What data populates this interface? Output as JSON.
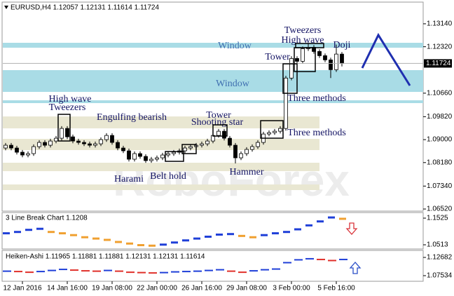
{
  "chart_data": [
    {
      "type": "candlestick",
      "title": "EURUSD,H4 1.12057 1.12131 1.11614 1.11724",
      "x": [
        null,
        null,
        null,
        "12 Jan 2016",
        null,
        null,
        null,
        null,
        null,
        null,
        null,
        "14 Jan 16:00",
        null,
        null,
        null,
        null,
        null,
        null,
        null,
        "19 Jan 08:00",
        null,
        null,
        null,
        null,
        null,
        null,
        null,
        "22 Jan 00:00",
        null,
        null,
        null,
        null,
        null,
        null,
        null,
        "26 Jan 16:00",
        null,
        null,
        null,
        null,
        null,
        null,
        null,
        "29 Jan 08:00",
        null,
        null,
        null,
        null,
        null,
        null,
        null,
        "3 Feb 00:00",
        null,
        null,
        null,
        null,
        null,
        null,
        null,
        "5 Feb 16:00",
        null
      ],
      "open": [
        1.087,
        1.088,
        1.087,
        1.0855,
        1.0845,
        1.085,
        1.0875,
        1.089,
        1.088,
        1.0895,
        1.0905,
        1.094,
        1.091,
        1.0895,
        1.089,
        1.0885,
        1.088,
        1.0885,
        1.09,
        1.0915,
        1.089,
        1.087,
        1.086,
        1.083,
        1.085,
        1.084,
        1.0825,
        1.083,
        1.0835,
        1.0845,
        1.085,
        1.0855,
        1.086,
        1.087,
        1.0875,
        1.088,
        1.0885,
        1.0895,
        1.0915,
        1.093,
        1.0905,
        1.088,
        1.0835,
        1.085,
        1.0865,
        1.0875,
        1.089,
        1.092,
        1.0925,
        1.093,
        1.094,
        1.112,
        1.119,
        1.118,
        1.1225,
        1.123,
        1.1215,
        1.12,
        1.1185,
        1.115,
        1.12057
      ],
      "high": [
        1.0888,
        1.0888,
        1.0878,
        1.0863,
        1.0858,
        1.0883,
        1.0898,
        1.0898,
        1.0903,
        1.0913,
        1.0948,
        1.0948,
        1.0918,
        1.0903,
        1.0898,
        1.0893,
        1.0893,
        1.0908,
        1.0923,
        1.0923,
        1.0898,
        1.0878,
        1.0868,
        1.0858,
        1.0858,
        1.0848,
        1.0838,
        1.0843,
        1.0853,
        1.0858,
        1.0863,
        1.0868,
        1.0878,
        1.0883,
        1.0888,
        1.0893,
        1.0903,
        1.0923,
        1.0938,
        1.0938,
        1.0913,
        1.0888,
        1.0858,
        1.0873,
        1.0883,
        1.0898,
        1.0928,
        1.0933,
        1.0938,
        1.0948,
        1.1128,
        1.1198,
        1.1198,
        1.1233,
        1.1245,
        1.1238,
        1.1223,
        1.1208,
        1.1193,
        1.124,
        1.12131
      ],
      "low": [
        1.0862,
        1.0862,
        1.0847,
        1.0837,
        1.0837,
        1.0842,
        1.0867,
        1.0872,
        1.0872,
        1.0887,
        1.0897,
        1.0902,
        1.0887,
        1.0882,
        1.0877,
        1.0872,
        1.0872,
        1.0877,
        1.0892,
        1.0882,
        1.0862,
        1.0852,
        1.0822,
        1.0822,
        1.0832,
        1.0817,
        1.0817,
        1.0822,
        1.0827,
        1.0837,
        1.0842,
        1.0847,
        1.0852,
        1.0862,
        1.0867,
        1.0872,
        1.0877,
        1.0887,
        1.0907,
        1.0897,
        1.0872,
        1.0815,
        1.0827,
        1.0842,
        1.0857,
        1.0867,
        1.0882,
        1.0912,
        1.0917,
        1.0922,
        1.0932,
        1.1112,
        1.1172,
        1.1172,
        1.1217,
        1.1207,
        1.1192,
        1.1177,
        1.112,
        1.1142,
        1.11614
      ],
      "close": [
        1.088,
        1.087,
        1.0855,
        1.0845,
        1.085,
        1.0875,
        1.089,
        1.088,
        1.0895,
        1.0905,
        1.094,
        1.091,
        1.0895,
        1.089,
        1.0885,
        1.088,
        1.0885,
        1.09,
        1.0915,
        1.089,
        1.087,
        1.086,
        1.083,
        1.085,
        1.084,
        1.0825,
        1.083,
        1.0835,
        1.0845,
        1.085,
        1.0855,
        1.086,
        1.087,
        1.0875,
        1.088,
        1.0885,
        1.0895,
        1.0915,
        1.093,
        1.0905,
        1.088,
        1.0835,
        1.085,
        1.0865,
        1.0875,
        1.089,
        1.092,
        1.0925,
        1.093,
        1.094,
        1.112,
        1.119,
        1.118,
        1.1225,
        1.123,
        1.1215,
        1.12,
        1.1185,
        1.115,
        1.12057,
        1.11724
      ],
      "ylim": [
        1.0647,
        1.1389
      ],
      "yticks": [
        {
          "value": 1.1314,
          "label": "1.13140"
        },
        {
          "value": 1.1232,
          "label": "1.12320"
        },
        {
          "value": 1.1066,
          "label": "1.10660"
        },
        {
          "value": 1.0982,
          "label": "1.09820"
        },
        {
          "value": 1.09,
          "label": "1.09000"
        },
        {
          "value": 1.0818,
          "label": "1.08180"
        },
        {
          "value": 1.0734,
          "label": "1.07340"
        },
        {
          "value": 1.0652,
          "label": "1.06520"
        }
      ],
      "last_price": 1.11724,
      "annotations": [
        "Window",
        "Window",
        "Tweezers",
        "High wave",
        "Doji",
        "Tower",
        "Three methods",
        "Three methods",
        "High wave",
        "Tweezers",
        "Engulfing bearish",
        "Tower",
        "Shooting star",
        "Hammer",
        "Harami",
        "Belt hold"
      ]
    },
    {
      "type": "line-break",
      "title": "3 Line Break Chart 1.1208",
      "values": [
        1.095,
        1.1,
        1.108,
        1.112,
        1.1,
        1.095,
        1.088,
        1.08,
        1.075,
        1.07,
        1.062,
        1.056,
        1.05,
        1.048,
        1.052,
        1.06,
        1.068,
        1.075,
        1.082,
        1.09,
        1.092,
        1.085,
        1.08,
        1.088,
        1.095,
        1.1,
        1.11,
        1.125,
        1.14,
        1.155,
        1.15
      ],
      "ylim": [
        1.038,
        1.1711
      ],
      "yticks": [
        1.1525,
        1.0513
      ]
    },
    {
      "type": "heiken-ashi",
      "title": "Heiken-Ashi 1.11965 1.11881 1.11881 1.12131 1.12131 1.11614",
      "values": [
        1.088,
        1.087,
        1.085,
        1.087,
        1.09,
        1.093,
        1.091,
        1.089,
        1.088,
        1.09,
        1.088,
        1.085,
        1.084,
        1.083,
        1.084,
        1.086,
        1.087,
        1.088,
        1.09,
        1.092,
        1.088,
        1.085,
        1.089,
        1.092,
        1.094,
        1.112,
        1.12,
        1.123,
        1.121,
        1.118,
        1.121
      ],
      "ylim": [
        1.0615,
        1.1446
      ],
      "yticks": [
        1.12682,
        1.07534
      ]
    }
  ],
  "watermark": "RoboForex"
}
